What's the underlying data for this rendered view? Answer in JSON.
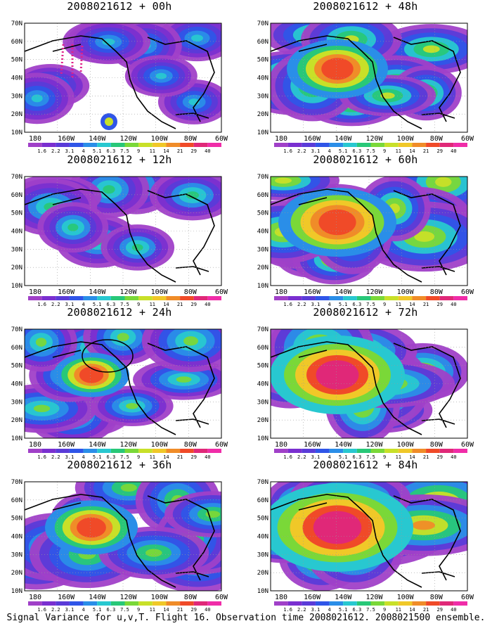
{
  "panels": [
    {
      "id": "p00",
      "title": "2008021612 + 00h",
      "intensity": 0.25,
      "hasVerticalDots": true,
      "hasCircle": false
    },
    {
      "id": "p48",
      "title": "2008021612 + 48h",
      "intensity": 0.6,
      "hasVerticalDots": false,
      "hasCircle": false
    },
    {
      "id": "p12",
      "title": "2008021612 + 12h",
      "intensity": 0.35,
      "hasVerticalDots": false,
      "hasCircle": false
    },
    {
      "id": "p60",
      "title": "2008021612 + 60h",
      "intensity": 0.7,
      "hasVerticalDots": false,
      "hasCircle": false
    },
    {
      "id": "p24",
      "title": "2008021612 + 24h",
      "intensity": 0.45,
      "hasVerticalDots": false,
      "hasCircle": true
    },
    {
      "id": "p72",
      "title": "2008021612 + 72h",
      "intensity": 0.8,
      "hasVerticalDots": false,
      "hasCircle": false
    },
    {
      "id": "p36",
      "title": "2008021612 + 36h",
      "intensity": 0.55,
      "hasVerticalDots": false,
      "hasCircle": false
    },
    {
      "id": "p84",
      "title": "2008021612 + 84h",
      "intensity": 0.9,
      "hasVerticalDots": false,
      "hasCircle": false
    }
  ],
  "axes": {
    "lat_labels": [
      "70N",
      "60N",
      "50N",
      "40N",
      "30N",
      "20N",
      "10N"
    ],
    "lon_labels": [
      "180",
      "160W",
      "140W",
      "120W",
      "100W",
      "80W",
      "60W"
    ]
  },
  "colorbar": {
    "labels": [
      "1.6",
      "2.2",
      "3.1",
      "4",
      "5.1",
      "6.3",
      "7.5",
      "9",
      "11",
      "14",
      "21",
      "29",
      "40"
    ],
    "colors": [
      "#a040c8",
      "#7a2fd0",
      "#5a3bd8",
      "#2f55e8",
      "#2a8ee8",
      "#28c8d0",
      "#28c878",
      "#7ad838",
      "#c8e028",
      "#f0c828",
      "#f08c28",
      "#f04a28",
      "#e02878",
      "#f02ca8"
    ]
  },
  "caption": "Signal Variance for u,v,T. Flight 16. Observation time 2008021612. 2008021500 ensemble."
}
